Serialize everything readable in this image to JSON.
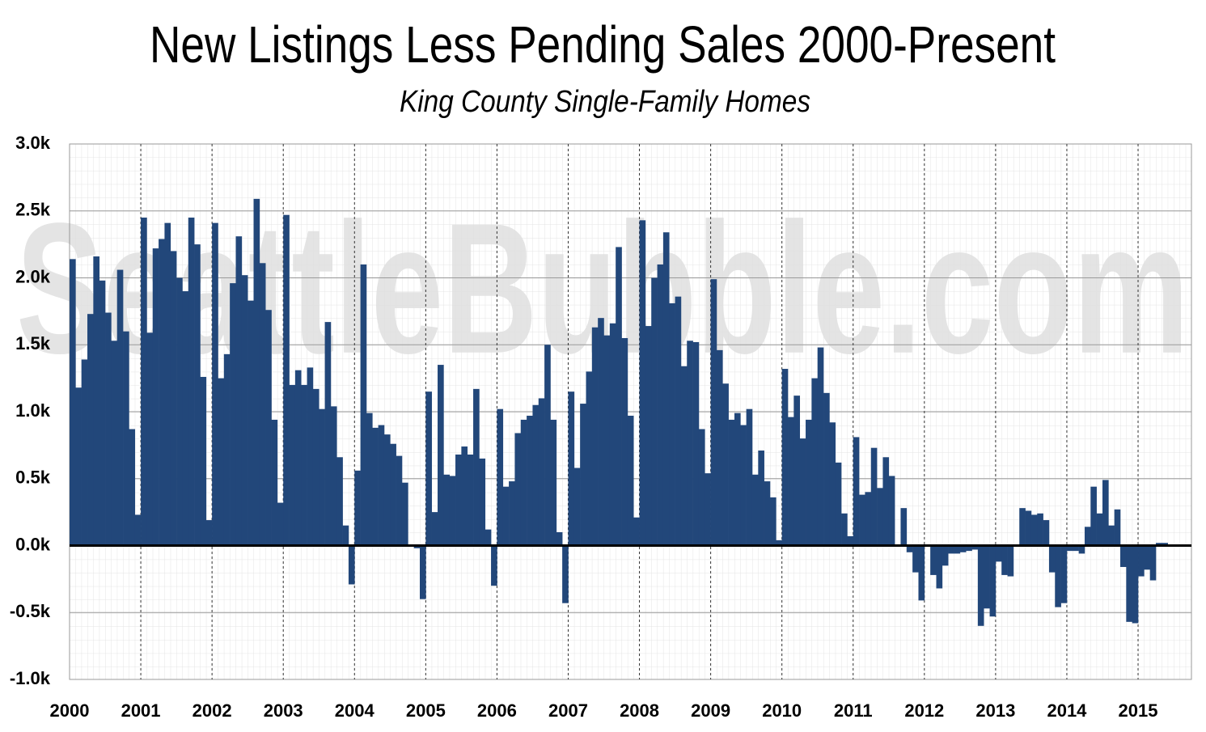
{
  "chart_data": {
    "type": "bar",
    "title": "New Listings Less Pending Sales 2000-Present",
    "subtitle": "King County Single-Family Homes",
    "watermark": "SeattleBubble.com",
    "color": "#22477a",
    "grid": true,
    "categories": [
      "2000",
      null,
      null,
      null,
      null,
      null,
      null,
      null,
      null,
      null,
      null,
      null,
      "2001",
      null,
      null,
      null,
      null,
      null,
      null,
      null,
      null,
      null,
      null,
      null,
      "2002",
      null,
      null,
      null,
      null,
      null,
      null,
      null,
      null,
      null,
      null,
      null,
      "2003",
      null,
      null,
      null,
      null,
      null,
      null,
      null,
      null,
      null,
      null,
      null,
      "2004",
      null,
      null,
      null,
      null,
      null,
      null,
      null,
      null,
      null,
      null,
      null,
      "2005",
      null,
      null,
      null,
      null,
      null,
      null,
      null,
      null,
      null,
      null,
      null,
      "2006",
      null,
      null,
      null,
      null,
      null,
      null,
      null,
      null,
      null,
      null,
      null,
      "2007",
      null,
      null,
      null,
      null,
      null,
      null,
      null,
      null,
      null,
      null,
      null,
      "2008",
      null,
      null,
      null,
      null,
      null,
      null,
      null,
      null,
      null,
      null,
      null,
      "2009",
      null,
      null,
      null,
      null,
      null,
      null,
      null,
      null,
      null,
      null,
      null,
      "2010",
      null,
      null,
      null,
      null,
      null,
      null,
      null,
      null,
      null,
      null,
      null,
      "2011",
      null,
      null,
      null,
      null,
      null,
      null,
      null,
      null,
      null,
      null,
      null,
      "2012",
      null,
      null,
      null,
      null,
      null,
      null,
      null,
      null,
      null,
      null,
      null,
      "2013",
      null,
      null,
      null,
      null,
      null,
      null,
      null,
      null,
      null,
      null,
      null,
      "2014",
      null,
      null,
      null,
      null,
      null,
      null,
      null,
      null,
      null,
      null,
      null,
      "2015",
      null,
      null,
      null,
      null
    ],
    "values": [
      2.14,
      1.18,
      1.39,
      1.73,
      2.16,
      1.98,
      1.74,
      1.53,
      2.06,
      1.6,
      0.87,
      0.23,
      2.45,
      1.59,
      2.22,
      2.29,
      2.41,
      2.2,
      2.0,
      1.9,
      2.45,
      2.25,
      1.26,
      0.19,
      2.41,
      1.25,
      1.43,
      1.96,
      2.31,
      2.02,
      1.83,
      2.59,
      2.11,
      1.76,
      0.94,
      0.32,
      2.47,
      1.2,
      1.31,
      1.2,
      1.33,
      1.17,
      1.02,
      1.67,
      1.04,
      0.66,
      0.15,
      -0.29,
      0.56,
      2.1,
      0.99,
      0.88,
      0.9,
      0.83,
      0.76,
      0.67,
      0.47,
      0.0,
      -0.02,
      -0.4,
      1.15,
      0.25,
      1.35,
      0.53,
      0.52,
      0.68,
      0.74,
      0.68,
      1.17,
      0.65,
      0.12,
      -0.3,
      1.02,
      0.44,
      0.48,
      0.84,
      0.94,
      0.97,
      1.05,
      1.1,
      1.5,
      0.94,
      0.1,
      -0.43,
      1.15,
      0.58,
      1.06,
      1.3,
      1.63,
      1.7,
      1.57,
      1.66,
      2.23,
      1.55,
      0.97,
      0.21,
      2.43,
      1.64,
      2.0,
      2.1,
      2.34,
      1.81,
      1.86,
      1.34,
      1.53,
      1.52,
      0.87,
      0.54,
      1.99,
      1.46,
      1.21,
      0.94,
      0.99,
      0.9,
      1.02,
      0.53,
      0.71,
      0.48,
      0.36,
      0.04,
      1.32,
      0.96,
      1.12,
      0.8,
      0.94,
      1.25,
      1.48,
      1.14,
      0.92,
      0.62,
      0.24,
      0.07,
      0.81,
      0.38,
      0.4,
      0.73,
      0.43,
      0.66,
      0.52,
      0.0,
      0.28,
      -0.05,
      -0.2,
      -0.41,
      0.0,
      -0.22,
      -0.32,
      -0.15,
      -0.06,
      -0.06,
      -0.05,
      -0.04,
      -0.03,
      -0.6,
      -0.47,
      -0.53,
      -0.12,
      -0.22,
      -0.23,
      0.0,
      0.28,
      0.26,
      0.23,
      0.24,
      0.19,
      -0.2,
      -0.46,
      -0.43,
      -0.04,
      -0.04,
      -0.06,
      0.14,
      0.44,
      0.24,
      0.49,
      0.15,
      0.27,
      -0.16,
      -0.57,
      -0.58,
      -0.23,
      -0.18,
      -0.26,
      0.02,
      0.02
    ],
    "ylim": [
      -1.0,
      3.0
    ],
    "yticks": [
      {
        "value": -1.0,
        "label": "-1.0k"
      },
      {
        "value": -0.5,
        "label": "-0.5k"
      },
      {
        "value": 0.0,
        "label": "0.0k"
      },
      {
        "value": 0.5,
        "label": "0.5k"
      },
      {
        "value": 1.0,
        "label": "1.0k"
      },
      {
        "value": 1.5,
        "label": "1.5k"
      },
      {
        "value": 2.0,
        "label": "2.0k"
      },
      {
        "value": 2.5,
        "label": "2.5k"
      },
      {
        "value": 3.0,
        "label": "3.0k"
      }
    ]
  }
}
